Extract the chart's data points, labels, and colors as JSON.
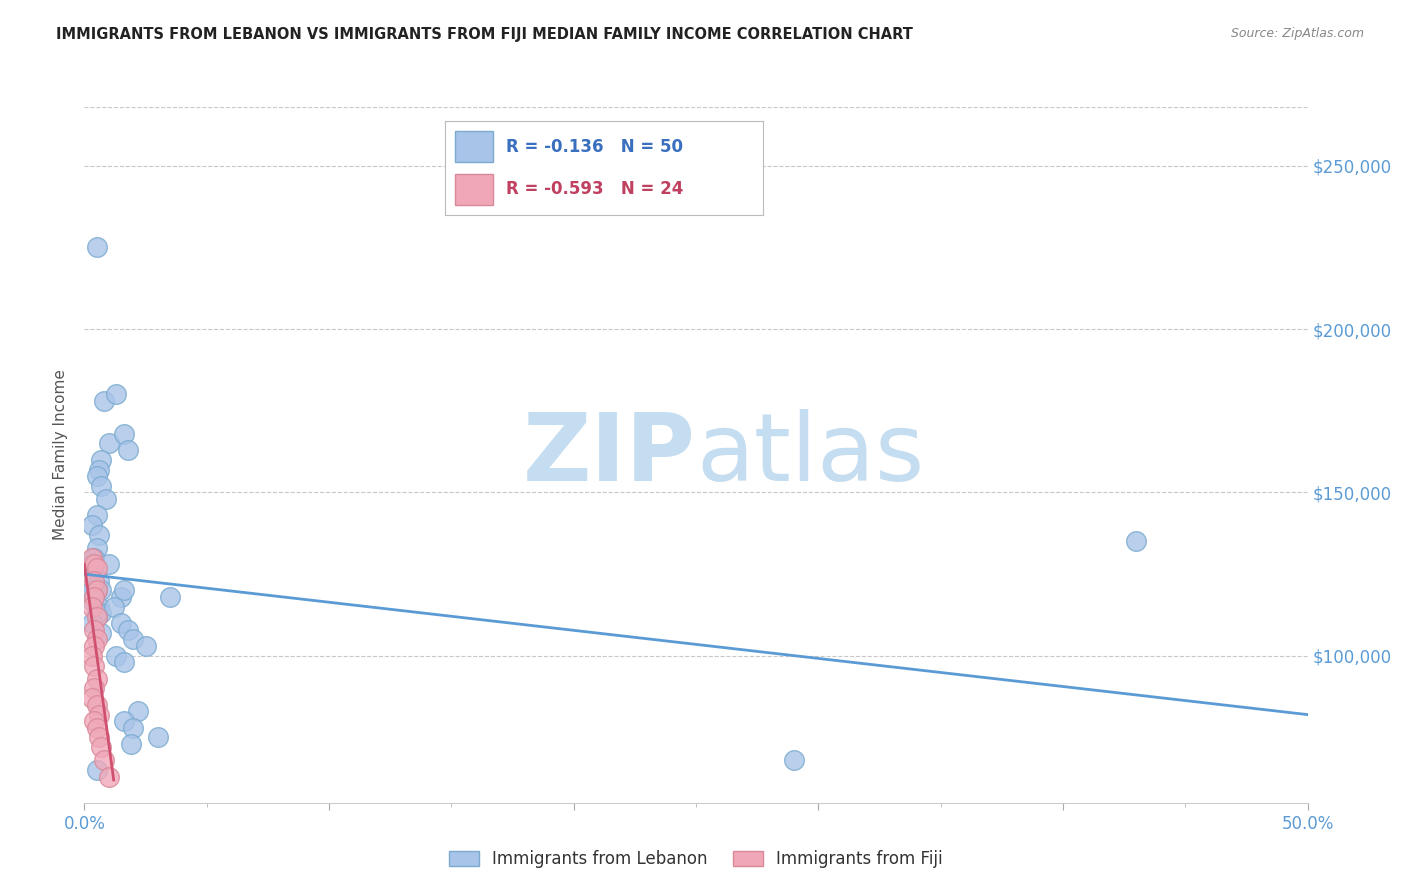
{
  "title": "IMMIGRANTS FROM LEBANON VS IMMIGRANTS FROM FIJI MEDIAN FAMILY INCOME CORRELATION CHART",
  "source": "Source: ZipAtlas.com",
  "ylabel": "Median Family Income",
  "watermark_zip": "ZIP",
  "watermark_atlas": "atlas",
  "legend_entries": [
    {
      "label": "Immigrants from Lebanon",
      "R": "-0.136",
      "N": "50",
      "face_color": "#a8c4e8",
      "edge_color": "#7aaad0"
    },
    {
      "label": "Immigrants from Fiji",
      "R": "-0.593",
      "N": "24",
      "face_color": "#f0a8b8",
      "edge_color": "#d88898"
    }
  ],
  "ytick_labels": [
    "$100,000",
    "$150,000",
    "$200,000",
    "$250,000"
  ],
  "ytick_values": [
    100000,
    150000,
    200000,
    250000
  ],
  "xlim": [
    0.0,
    0.5
  ],
  "ylim": [
    55000,
    268000
  ],
  "lebanon_points": [
    [
      0.005,
      225000
    ],
    [
      0.008,
      178000
    ],
    [
      0.013,
      180000
    ],
    [
      0.01,
      165000
    ],
    [
      0.016,
      168000
    ],
    [
      0.007,
      160000
    ],
    [
      0.006,
      157000
    ],
    [
      0.018,
      163000
    ],
    [
      0.005,
      155000
    ],
    [
      0.007,
      152000
    ],
    [
      0.009,
      148000
    ],
    [
      0.005,
      143000
    ],
    [
      0.003,
      140000
    ],
    [
      0.006,
      137000
    ],
    [
      0.005,
      133000
    ],
    [
      0.004,
      130000
    ],
    [
      0.003,
      128000
    ],
    [
      0.004,
      125000
    ],
    [
      0.006,
      123000
    ],
    [
      0.007,
      120000
    ],
    [
      0.005,
      120000
    ],
    [
      0.004,
      118000
    ],
    [
      0.003,
      117000
    ],
    [
      0.006,
      115000
    ],
    [
      0.007,
      113000
    ],
    [
      0.005,
      112000
    ],
    [
      0.004,
      120000
    ],
    [
      0.003,
      120000
    ],
    [
      0.01,
      128000
    ],
    [
      0.015,
      118000
    ],
    [
      0.035,
      118000
    ],
    [
      0.005,
      113000
    ],
    [
      0.003,
      110000
    ],
    [
      0.007,
      107000
    ],
    [
      0.013,
      100000
    ],
    [
      0.016,
      98000
    ],
    [
      0.016,
      120000
    ],
    [
      0.012,
      115000
    ],
    [
      0.015,
      110000
    ],
    [
      0.018,
      108000
    ],
    [
      0.02,
      105000
    ],
    [
      0.025,
      103000
    ],
    [
      0.022,
      83000
    ],
    [
      0.016,
      80000
    ],
    [
      0.02,
      78000
    ],
    [
      0.03,
      75000
    ],
    [
      0.019,
      73000
    ],
    [
      0.29,
      68000
    ],
    [
      0.43,
      135000
    ],
    [
      0.005,
      65000
    ]
  ],
  "fiji_points": [
    [
      0.003,
      130000
    ],
    [
      0.004,
      128000
    ],
    [
      0.005,
      127000
    ],
    [
      0.004,
      123000
    ],
    [
      0.005,
      120000
    ],
    [
      0.004,
      118000
    ],
    [
      0.003,
      115000
    ],
    [
      0.005,
      112000
    ],
    [
      0.004,
      108000
    ],
    [
      0.005,
      105000
    ],
    [
      0.004,
      103000
    ],
    [
      0.003,
      100000
    ],
    [
      0.004,
      97000
    ],
    [
      0.005,
      93000
    ],
    [
      0.004,
      90000
    ],
    [
      0.003,
      87000
    ],
    [
      0.005,
      85000
    ],
    [
      0.006,
      82000
    ],
    [
      0.004,
      80000
    ],
    [
      0.005,
      78000
    ],
    [
      0.006,
      75000
    ],
    [
      0.007,
      72000
    ],
    [
      0.008,
      68000
    ],
    [
      0.01,
      63000
    ]
  ],
  "lebanon_line": {
    "x0": 0.0,
    "x1": 0.5,
    "y0": 125000,
    "y1": 82000
  },
  "fiji_line": {
    "x0": 0.0,
    "x1": 0.012,
    "y0": 128000,
    "y1": 62000
  },
  "lebanon_line_color": "#5b9bd5",
  "fiji_line_color": "#d05070",
  "scatter_lebanon_face": "#a8c4e8",
  "scatter_lebanon_edge": "#7aaad0",
  "scatter_fiji_face": "#f0a8b8",
  "scatter_fiji_edge": "#d88898",
  "background_color": "#ffffff",
  "grid_color": "#c8c8c8",
  "title_color": "#222222",
  "source_color": "#888888",
  "tick_label_color": "#5b9bd5",
  "ylabel_color": "#555555"
}
